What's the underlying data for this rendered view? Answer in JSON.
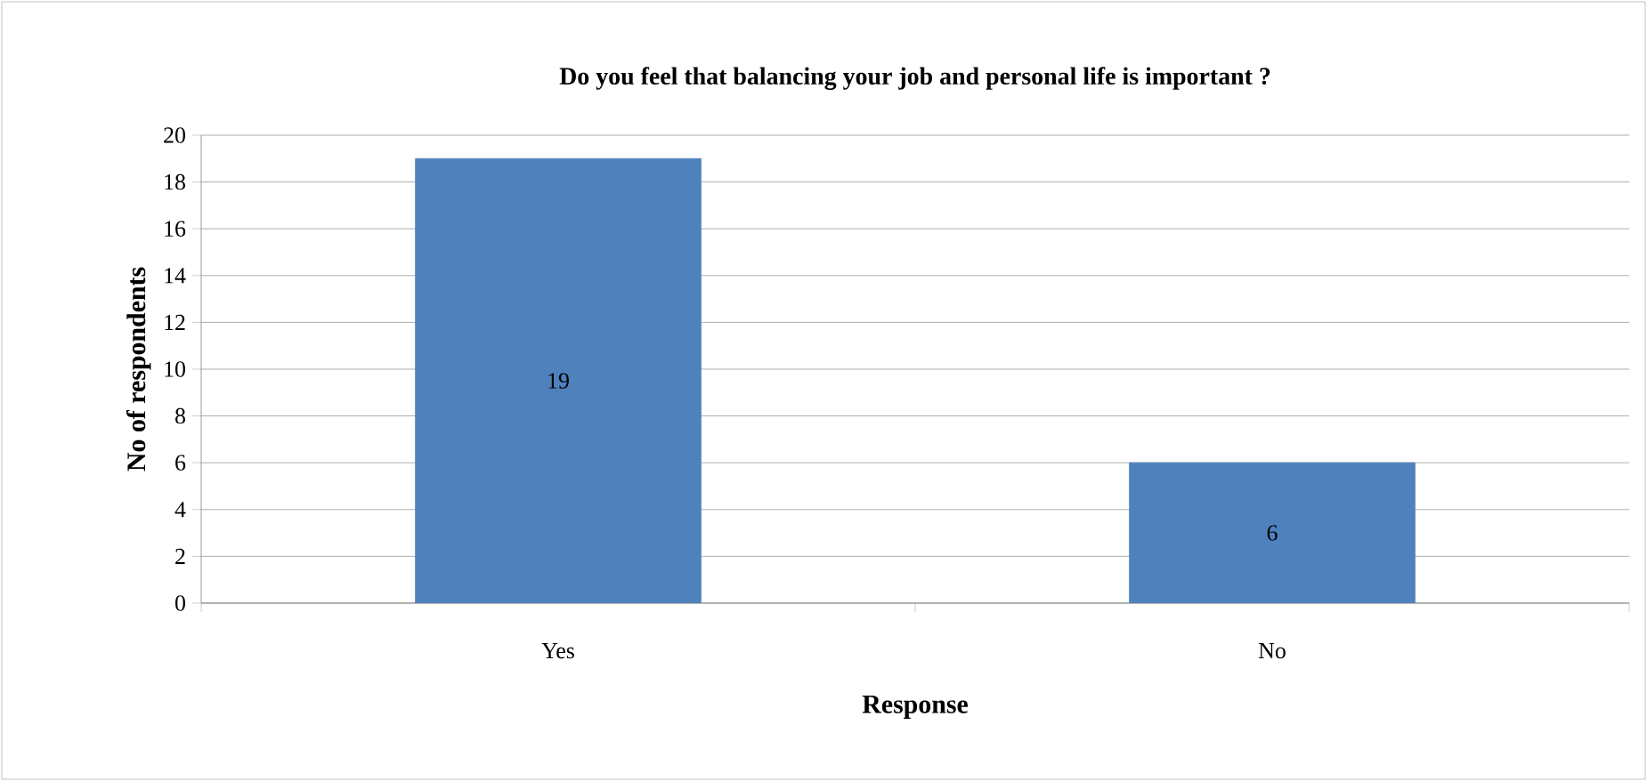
{
  "chart_data": {
    "type": "bar",
    "title": "Do you feel that balancing your job and personal life is important ?",
    "xlabel": "Response",
    "ylabel": "No of respondents",
    "categories": [
      "Yes",
      "No"
    ],
    "values": [
      19,
      6
    ],
    "color": "#4f81bd",
    "ylim": [
      0,
      20
    ],
    "yticks": [
      0,
      2,
      4,
      6,
      8,
      10,
      12,
      14,
      16,
      18,
      20
    ],
    "grid": "y",
    "data_labels": true
  }
}
